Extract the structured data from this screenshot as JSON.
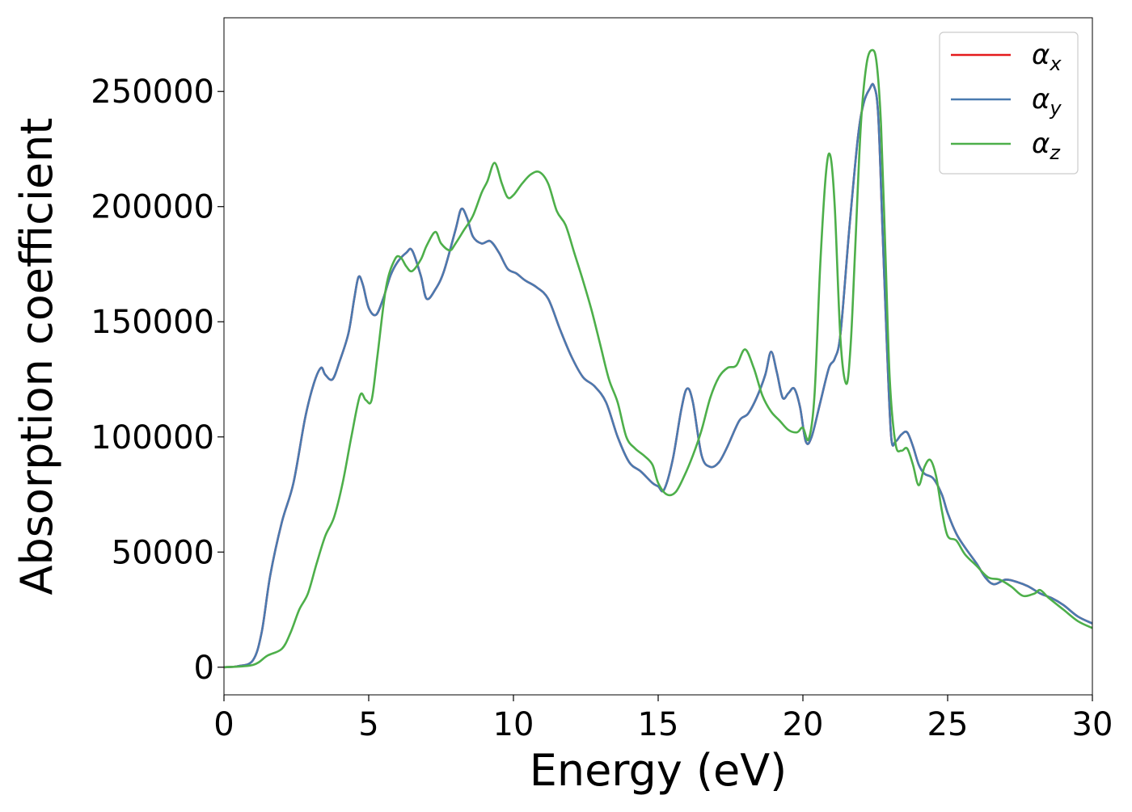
{
  "chart_data": {
    "type": "line",
    "title": "",
    "xlabel": "Energy (eV)",
    "ylabel": "Absorption coefficient",
    "xlim": [
      0,
      30
    ],
    "ylim": [
      -12000,
      282000
    ],
    "xticks": [
      0,
      5,
      10,
      15,
      20,
      25,
      30
    ],
    "xtick_labels": [
      "0",
      "5",
      "10",
      "15",
      "20",
      "25",
      "30"
    ],
    "yticks": [
      0,
      50000,
      100000,
      150000,
      200000,
      250000
    ],
    "ytick_labels": [
      "0",
      "50000",
      "100000",
      "150000",
      "200000",
      "250000"
    ],
    "grid": false,
    "legend_position": "top-right",
    "series": [
      {
        "name": "αx",
        "symbol": "α",
        "subscript": "x",
        "color": "#e41a1c",
        "x": [
          0,
          0.5,
          1.0,
          1.3,
          1.6,
          2.0,
          2.4,
          2.8,
          3.1,
          3.35,
          3.5,
          3.75,
          4.0,
          4.3,
          4.5,
          4.65,
          4.8,
          5.0,
          5.25,
          5.5,
          5.75,
          6.0,
          6.3,
          6.5,
          6.8,
          7.0,
          7.3,
          7.6,
          8.0,
          8.2,
          8.4,
          8.6,
          8.9,
          9.2,
          9.5,
          9.8,
          10.1,
          10.4,
          10.8,
          11.2,
          11.6,
          12.0,
          12.4,
          12.8,
          13.2,
          13.6,
          14.0,
          14.4,
          14.8,
          15.0,
          15.2,
          15.5,
          15.8,
          16.0,
          16.2,
          16.5,
          16.8,
          17.1,
          17.4,
          17.8,
          18.1,
          18.4,
          18.7,
          18.9,
          19.1,
          19.3,
          19.5,
          19.7,
          19.9,
          20.1,
          20.3,
          20.6,
          20.9,
          21.1,
          21.3,
          21.6,
          21.9,
          22.1,
          22.3,
          22.45,
          22.6,
          22.75,
          22.9,
          23.05,
          23.2,
          23.4,
          23.6,
          23.8,
          24.0,
          24.2,
          24.5,
          24.8,
          25.0,
          25.3,
          25.6,
          26.0,
          26.3,
          26.6,
          27.0,
          27.4,
          27.8,
          28.2,
          28.6,
          29.0,
          29.5,
          30.0
        ],
        "y": [
          0,
          500,
          3000,
          15000,
          40000,
          63000,
          80000,
          108000,
          123000,
          130000,
          127000,
          125000,
          133000,
          145000,
          160000,
          169500,
          166000,
          156000,
          153000,
          160000,
          170000,
          176000,
          180000,
          181000,
          170000,
          160000,
          164000,
          172000,
          190000,
          199000,
          195000,
          187000,
          184000,
          185000,
          180000,
          173000,
          171000,
          168000,
          165000,
          160000,
          147000,
          135000,
          126000,
          122000,
          115000,
          100000,
          89000,
          85000,
          80000,
          78500,
          77000,
          90000,
          112000,
          121000,
          115000,
          92000,
          87000,
          89000,
          96000,
          107000,
          110000,
          117000,
          127000,
          137000,
          128000,
          117000,
          119000,
          121000,
          113000,
          98000,
          100000,
          115000,
          130000,
          134000,
          145000,
          190000,
          230000,
          245000,
          251000,
          252500,
          240000,
          190000,
          140000,
          100000,
          98000,
          101000,
          102000,
          96000,
          88000,
          84000,
          82000,
          75000,
          67000,
          58000,
          52000,
          45000,
          39000,
          36000,
          38000,
          37000,
          35000,
          32000,
          30000,
          27000,
          22000,
          19000
        ]
      },
      {
        "name": "αy",
        "symbol": "α",
        "subscript": "y",
        "color": "#4a7ab0",
        "x": [
          0,
          0.5,
          1.0,
          1.3,
          1.6,
          2.0,
          2.4,
          2.8,
          3.1,
          3.35,
          3.5,
          3.75,
          4.0,
          4.3,
          4.5,
          4.65,
          4.8,
          5.0,
          5.25,
          5.5,
          5.75,
          6.0,
          6.3,
          6.5,
          6.8,
          7.0,
          7.3,
          7.6,
          8.0,
          8.2,
          8.4,
          8.6,
          8.9,
          9.2,
          9.5,
          9.8,
          10.1,
          10.4,
          10.8,
          11.2,
          11.6,
          12.0,
          12.4,
          12.8,
          13.2,
          13.6,
          14.0,
          14.4,
          14.8,
          15.0,
          15.2,
          15.5,
          15.8,
          16.0,
          16.2,
          16.5,
          16.8,
          17.1,
          17.4,
          17.8,
          18.1,
          18.4,
          18.7,
          18.9,
          19.1,
          19.3,
          19.5,
          19.7,
          19.9,
          20.1,
          20.3,
          20.6,
          20.9,
          21.1,
          21.3,
          21.6,
          21.9,
          22.1,
          22.3,
          22.45,
          22.6,
          22.75,
          22.9,
          23.05,
          23.2,
          23.4,
          23.6,
          23.8,
          24.0,
          24.2,
          24.5,
          24.8,
          25.0,
          25.3,
          25.6,
          26.0,
          26.3,
          26.6,
          27.0,
          27.4,
          27.8,
          28.2,
          28.6,
          29.0,
          29.5,
          30.0
        ],
        "y": [
          0,
          500,
          3000,
          15000,
          40000,
          63000,
          80000,
          108000,
          123000,
          130000,
          127000,
          125000,
          133000,
          145000,
          160000,
          169500,
          166000,
          156000,
          153000,
          160000,
          170000,
          176000,
          180000,
          181000,
          170000,
          160000,
          164000,
          172000,
          190000,
          199000,
          195000,
          187000,
          184000,
          185000,
          180000,
          173000,
          171000,
          168000,
          165000,
          160000,
          147000,
          135000,
          126000,
          122000,
          115000,
          100000,
          89000,
          85000,
          80000,
          78500,
          77000,
          90000,
          112000,
          121000,
          115000,
          92000,
          87000,
          89000,
          96000,
          107000,
          110000,
          117000,
          127000,
          137000,
          128000,
          117000,
          119000,
          121000,
          113000,
          98000,
          100000,
          115000,
          130000,
          134000,
          145000,
          190000,
          230000,
          245000,
          251000,
          252500,
          240000,
          190000,
          140000,
          100000,
          98000,
          101000,
          102000,
          96000,
          88000,
          84000,
          82000,
          75000,
          67000,
          58000,
          52000,
          45000,
          39000,
          36000,
          38000,
          37000,
          35000,
          32000,
          30000,
          27000,
          22000,
          19000
        ]
      },
      {
        "name": "αz",
        "symbol": "α",
        "subscript": "z",
        "color": "#4daf4a",
        "x": [
          0,
          1.0,
          1.5,
          2.0,
          2.3,
          2.6,
          2.9,
          3.2,
          3.5,
          3.8,
          4.1,
          4.4,
          4.7,
          4.9,
          5.1,
          5.3,
          5.6,
          5.9,
          6.1,
          6.3,
          6.5,
          6.8,
          7.0,
          7.3,
          7.5,
          7.8,
          8.0,
          8.3,
          8.6,
          8.9,
          9.1,
          9.35,
          9.6,
          9.8,
          10.0,
          10.3,
          10.6,
          10.9,
          11.2,
          11.5,
          11.8,
          12.1,
          12.4,
          12.7,
          13.0,
          13.3,
          13.6,
          13.9,
          14.2,
          14.5,
          14.8,
          15.0,
          15.3,
          15.6,
          15.9,
          16.2,
          16.5,
          16.8,
          17.1,
          17.4,
          17.7,
          18.0,
          18.3,
          18.6,
          18.9,
          19.2,
          19.5,
          19.8,
          20.0,
          20.2,
          20.4,
          20.6,
          20.8,
          20.95,
          21.1,
          21.3,
          21.5,
          21.65,
          21.8,
          22.0,
          22.2,
          22.4,
          22.55,
          22.7,
          22.85,
          23.0,
          23.2,
          23.4,
          23.6,
          23.8,
          24.0,
          24.2,
          24.4,
          24.6,
          24.8,
          25.0,
          25.3,
          25.6,
          26.0,
          26.4,
          26.8,
          27.2,
          27.6,
          28.0,
          28.2,
          28.5,
          29.0,
          29.5,
          30.0
        ],
        "y": [
          0,
          1000,
          5000,
          8000,
          15000,
          25000,
          32000,
          45000,
          57000,
          65000,
          80000,
          100000,
          118000,
          116000,
          116000,
          135000,
          165000,
          177000,
          178000,
          174000,
          172000,
          177000,
          183000,
          189000,
          184000,
          181000,
          184000,
          190000,
          196000,
          206000,
          211000,
          219000,
          210000,
          204000,
          205000,
          210000,
          214000,
          215000,
          210000,
          198000,
          192000,
          180000,
          168000,
          155000,
          140000,
          125000,
          115000,
          100000,
          95000,
          92000,
          88000,
          80000,
          75000,
          76000,
          83000,
          92000,
          103000,
          117000,
          126000,
          130000,
          131000,
          138000,
          130000,
          118000,
          111000,
          107000,
          103000,
          102000,
          104000,
          99000,
          118000,
          175000,
          215000,
          222000,
          200000,
          142000,
          123000,
          140000,
          180000,
          235000,
          262000,
          268000,
          262000,
          235000,
          180000,
          125000,
          97000,
          94000,
          95000,
          88000,
          79000,
          87000,
          90000,
          83000,
          68000,
          57000,
          55000,
          49000,
          44000,
          39000,
          38000,
          35000,
          31000,
          32000,
          33500,
          30000,
          25000,
          20000,
          17000
        ]
      }
    ]
  }
}
